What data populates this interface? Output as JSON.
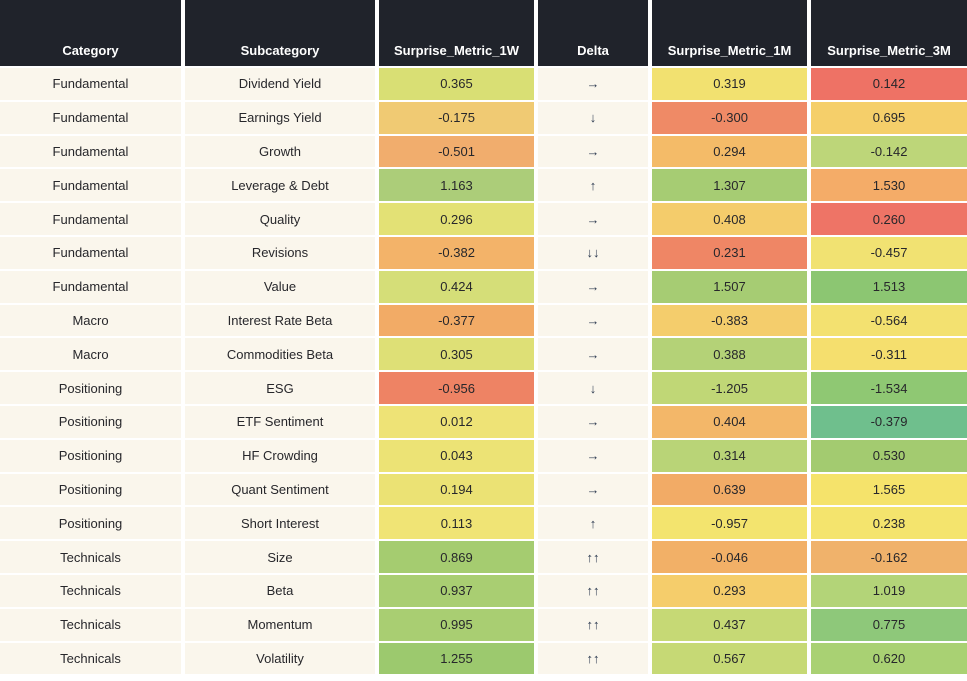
{
  "chart_data": {
    "type": "heatmap",
    "layout": "table with red-yellow-green cell shading per metric column",
    "colorscale": "red-yellow-green",
    "header_bg": "#20232b",
    "header_text_color": "#ffffff",
    "row_bg": "#faf6ec",
    "body_text_color": "#27272b",
    "delta_arrow_color": "#2c3a50",
    "columns": [
      {
        "key": "category",
        "label": "Category"
      },
      {
        "key": "subcategory",
        "label": "Subcategory"
      },
      {
        "key": "m1w",
        "label": "Surprise_Metric_1W"
      },
      {
        "key": "delta",
        "label": "Delta"
      },
      {
        "key": "m1m",
        "label": "Surprise_Metric_1M"
      },
      {
        "key": "m3m",
        "label": "Surprise_Metric_3M"
      }
    ],
    "rows": [
      {
        "category": "Fundamental",
        "subcategory": "Dividend Yield",
        "m1w": {
          "value": "0.365",
          "bg": "#d9df74"
        },
        "delta": "→",
        "m1m": {
          "value": "0.319",
          "bg": "#f2e170"
        },
        "m3m": {
          "value": "0.142",
          "bg": "#ee7265"
        }
      },
      {
        "category": "Fundamental",
        "subcategory": "Earnings Yield",
        "m1w": {
          "value": "-0.175",
          "bg": "#f0ca73"
        },
        "delta": "↓",
        "m1m": {
          "value": "-0.300",
          "bg": "#ef8a66"
        },
        "m3m": {
          "value": "0.695",
          "bg": "#f5cf6a"
        }
      },
      {
        "category": "Fundamental",
        "subcategory": "Growth",
        "m1w": {
          "value": "-0.501",
          "bg": "#f1ad6d"
        },
        "delta": "→",
        "m1m": {
          "value": "0.294",
          "bg": "#f4bb68"
        },
        "m3m": {
          "value": "-0.142",
          "bg": "#bdd679"
        }
      },
      {
        "category": "Fundamental",
        "subcategory": "Leverage & Debt",
        "m1w": {
          "value": "1.163",
          "bg": "#accd79"
        },
        "delta": "↑",
        "m1m": {
          "value": "1.307",
          "bg": "#a6cc73"
        },
        "m3m": {
          "value": "1.530",
          "bg": "#f4ac68"
        }
      },
      {
        "category": "Fundamental",
        "subcategory": "Quality",
        "m1w": {
          "value": "0.296",
          "bg": "#e3e175"
        },
        "delta": "→",
        "m1m": {
          "value": "0.408",
          "bg": "#f4cc6b"
        },
        "m3m": {
          "value": "0.260",
          "bg": "#ee7466"
        }
      },
      {
        "category": "Fundamental",
        "subcategory": "Revisions",
        "m1w": {
          "value": "-0.382",
          "bg": "#f3b369"
        },
        "delta": "↓↓",
        "m1m": {
          "value": "0.231",
          "bg": "#ef8665"
        },
        "m3m": {
          "value": "-0.457",
          "bg": "#f1e272"
        }
      },
      {
        "category": "Fundamental",
        "subcategory": "Value",
        "m1w": {
          "value": "0.424",
          "bg": "#d5de78"
        },
        "delta": "→",
        "m1m": {
          "value": "1.507",
          "bg": "#a6cc73"
        },
        "m3m": {
          "value": "1.513",
          "bg": "#8cc672"
        }
      },
      {
        "category": "Macro",
        "subcategory": "Interest Rate Beta",
        "m1w": {
          "value": "-0.377",
          "bg": "#f2ab66"
        },
        "delta": "→",
        "m1m": {
          "value": "-0.383",
          "bg": "#f4cd6c"
        },
        "m3m": {
          "value": "-0.564",
          "bg": "#f3e170"
        }
      },
      {
        "category": "Macro",
        "subcategory": "Commodities Beta",
        "m1w": {
          "value": "0.305",
          "bg": "#dee076"
        },
        "delta": "→",
        "m1m": {
          "value": "0.388",
          "bg": "#b4d277"
        },
        "m3m": {
          "value": "-0.311",
          "bg": "#f5df6e"
        }
      },
      {
        "category": "Positioning",
        "subcategory": "ESG",
        "m1w": {
          "value": "-0.956",
          "bg": "#ee8364"
        },
        "delta": "↓",
        "m1m": {
          "value": "-1.205",
          "bg": "#c0d776"
        },
        "m3m": {
          "value": "-1.534",
          "bg": "#8fc873"
        }
      },
      {
        "category": "Positioning",
        "subcategory": "ETF Sentiment",
        "m1w": {
          "value": "0.012",
          "bg": "#eee376"
        },
        "delta": "→",
        "m1m": {
          "value": "0.404",
          "bg": "#f3b769"
        },
        "m3m": {
          "value": "-0.379",
          "bg": "#6fbf8d"
        }
      },
      {
        "category": "Positioning",
        "subcategory": "HF Crowding",
        "m1w": {
          "value": "0.043",
          "bg": "#ece375"
        },
        "delta": "→",
        "m1m": {
          "value": "0.314",
          "bg": "#b9d477"
        },
        "m3m": {
          "value": "0.530",
          "bg": "#a3cb70"
        }
      },
      {
        "category": "Positioning",
        "subcategory": "Quant Sentiment",
        "m1w": {
          "value": "0.194",
          "bg": "#ebe274"
        },
        "delta": "→",
        "m1m": {
          "value": "0.639",
          "bg": "#f2ab66"
        },
        "m3m": {
          "value": "1.565",
          "bg": "#f5e36b"
        }
      },
      {
        "category": "Positioning",
        "subcategory": "Short Interest",
        "m1w": {
          "value": "0.113",
          "bg": "#f0e475"
        },
        "delta": "↑",
        "m1m": {
          "value": "-0.957",
          "bg": "#f3e46e"
        },
        "m3m": {
          "value": "0.238",
          "bg": "#f4e46d"
        }
      },
      {
        "category": "Technicals",
        "subcategory": "Size",
        "m1w": {
          "value": "0.869",
          "bg": "#a5cc70"
        },
        "delta": "↑↑",
        "m1m": {
          "value": "-0.046",
          "bg": "#f2b067"
        },
        "m3m": {
          "value": "-0.162",
          "bg": "#f0b26b"
        }
      },
      {
        "category": "Technicals",
        "subcategory": "Beta",
        "m1w": {
          "value": "0.937",
          "bg": "#a9ce72"
        },
        "delta": "↑↑",
        "m1m": {
          "value": "0.293",
          "bg": "#f5cd6b"
        },
        "m3m": {
          "value": "1.019",
          "bg": "#b3d478"
        }
      },
      {
        "category": "Technicals",
        "subcategory": "Momentum",
        "m1w": {
          "value": "0.995",
          "bg": "#a9ce72"
        },
        "delta": "↑↑",
        "m1m": {
          "value": "0.437",
          "bg": "#c6d975"
        },
        "m3m": {
          "value": "0.775",
          "bg": "#8ec87a"
        }
      },
      {
        "category": "Technicals",
        "subcategory": "Volatility",
        "m1w": {
          "value": "1.255",
          "bg": "#9cc96e"
        },
        "delta": "↑↑",
        "m1m": {
          "value": "0.567",
          "bg": "#c6d975"
        },
        "m3m": {
          "value": "0.620",
          "bg": "#a9d173"
        }
      }
    ]
  }
}
